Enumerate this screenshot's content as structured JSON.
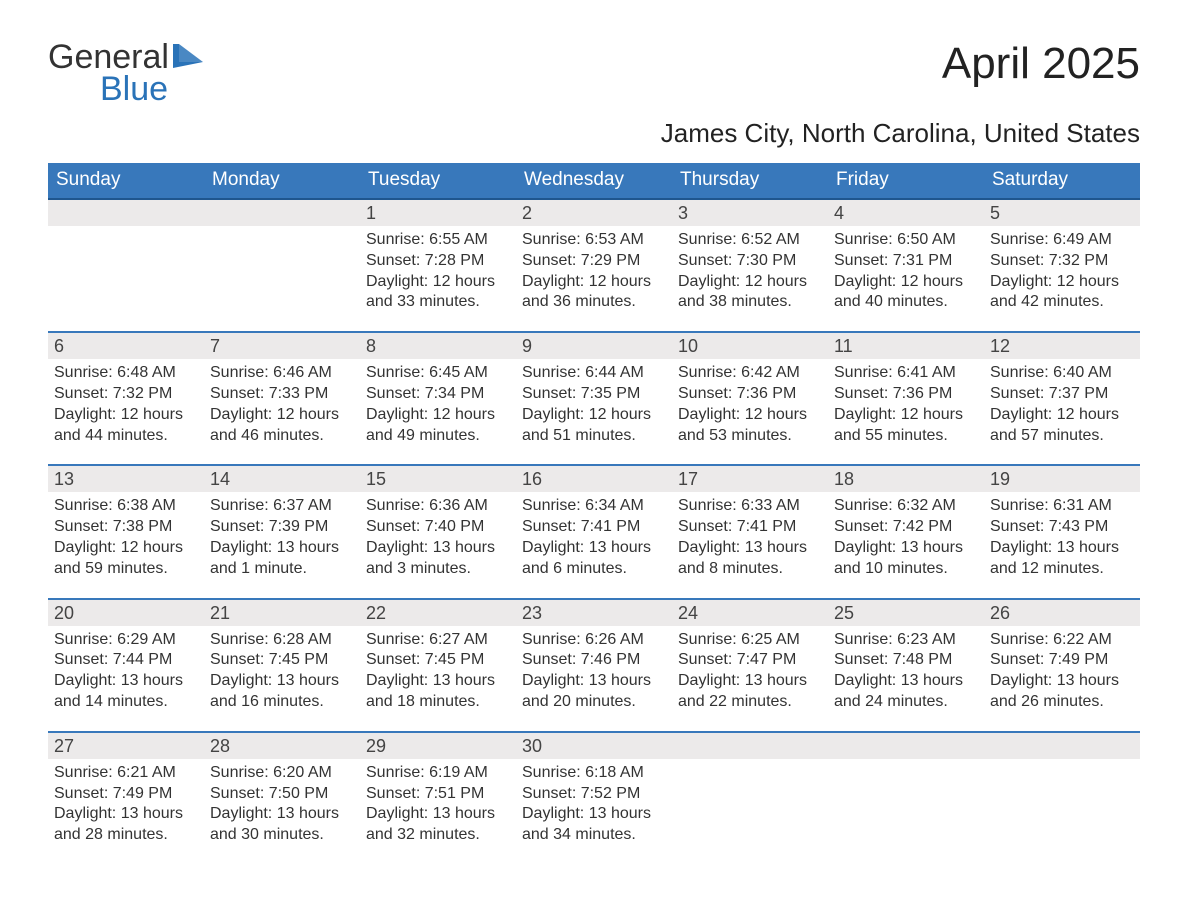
{
  "logo": {
    "line1": "General",
    "line2": "Blue"
  },
  "title": "April 2025",
  "subtitle": "James City, North Carolina, United States",
  "columns": [
    "Sunday",
    "Monday",
    "Tuesday",
    "Wednesday",
    "Thursday",
    "Friday",
    "Saturday"
  ],
  "style": {
    "header_bg": "#3878bb",
    "header_text": "#ffffff",
    "row_border": "#3878bb",
    "daynum_bg": "#eceaea",
    "body_text": "#333333",
    "logo_accent": "#2a73b8",
    "page_bg": "#ffffff",
    "title_fontsize": 44,
    "subtitle_fontsize": 26,
    "header_fontsize": 19,
    "daynum_fontsize": 18,
    "cell_fontsize": 16
  },
  "weeks": [
    [
      {
        "day": "",
        "sunrise": "",
        "sunset": "",
        "daylight1": "",
        "daylight2": ""
      },
      {
        "day": "",
        "sunrise": "",
        "sunset": "",
        "daylight1": "",
        "daylight2": ""
      },
      {
        "day": "1",
        "sunrise": "Sunrise: 6:55 AM",
        "sunset": "Sunset: 7:28 PM",
        "daylight1": "Daylight: 12 hours",
        "daylight2": "and 33 minutes."
      },
      {
        "day": "2",
        "sunrise": "Sunrise: 6:53 AM",
        "sunset": "Sunset: 7:29 PM",
        "daylight1": "Daylight: 12 hours",
        "daylight2": "and 36 minutes."
      },
      {
        "day": "3",
        "sunrise": "Sunrise: 6:52 AM",
        "sunset": "Sunset: 7:30 PM",
        "daylight1": "Daylight: 12 hours",
        "daylight2": "and 38 minutes."
      },
      {
        "day": "4",
        "sunrise": "Sunrise: 6:50 AM",
        "sunset": "Sunset: 7:31 PM",
        "daylight1": "Daylight: 12 hours",
        "daylight2": "and 40 minutes."
      },
      {
        "day": "5",
        "sunrise": "Sunrise: 6:49 AM",
        "sunset": "Sunset: 7:32 PM",
        "daylight1": "Daylight: 12 hours",
        "daylight2": "and 42 minutes."
      }
    ],
    [
      {
        "day": "6",
        "sunrise": "Sunrise: 6:48 AM",
        "sunset": "Sunset: 7:32 PM",
        "daylight1": "Daylight: 12 hours",
        "daylight2": "and 44 minutes."
      },
      {
        "day": "7",
        "sunrise": "Sunrise: 6:46 AM",
        "sunset": "Sunset: 7:33 PM",
        "daylight1": "Daylight: 12 hours",
        "daylight2": "and 46 minutes."
      },
      {
        "day": "8",
        "sunrise": "Sunrise: 6:45 AM",
        "sunset": "Sunset: 7:34 PM",
        "daylight1": "Daylight: 12 hours",
        "daylight2": "and 49 minutes."
      },
      {
        "day": "9",
        "sunrise": "Sunrise: 6:44 AM",
        "sunset": "Sunset: 7:35 PM",
        "daylight1": "Daylight: 12 hours",
        "daylight2": "and 51 minutes."
      },
      {
        "day": "10",
        "sunrise": "Sunrise: 6:42 AM",
        "sunset": "Sunset: 7:36 PM",
        "daylight1": "Daylight: 12 hours",
        "daylight2": "and 53 minutes."
      },
      {
        "day": "11",
        "sunrise": "Sunrise: 6:41 AM",
        "sunset": "Sunset: 7:36 PM",
        "daylight1": "Daylight: 12 hours",
        "daylight2": "and 55 minutes."
      },
      {
        "day": "12",
        "sunrise": "Sunrise: 6:40 AM",
        "sunset": "Sunset: 7:37 PM",
        "daylight1": "Daylight: 12 hours",
        "daylight2": "and 57 minutes."
      }
    ],
    [
      {
        "day": "13",
        "sunrise": "Sunrise: 6:38 AM",
        "sunset": "Sunset: 7:38 PM",
        "daylight1": "Daylight: 12 hours",
        "daylight2": "and 59 minutes."
      },
      {
        "day": "14",
        "sunrise": "Sunrise: 6:37 AM",
        "sunset": "Sunset: 7:39 PM",
        "daylight1": "Daylight: 13 hours",
        "daylight2": "and 1 minute."
      },
      {
        "day": "15",
        "sunrise": "Sunrise: 6:36 AM",
        "sunset": "Sunset: 7:40 PM",
        "daylight1": "Daylight: 13 hours",
        "daylight2": "and 3 minutes."
      },
      {
        "day": "16",
        "sunrise": "Sunrise: 6:34 AM",
        "sunset": "Sunset: 7:41 PM",
        "daylight1": "Daylight: 13 hours",
        "daylight2": "and 6 minutes."
      },
      {
        "day": "17",
        "sunrise": "Sunrise: 6:33 AM",
        "sunset": "Sunset: 7:41 PM",
        "daylight1": "Daylight: 13 hours",
        "daylight2": "and 8 minutes."
      },
      {
        "day": "18",
        "sunrise": "Sunrise: 6:32 AM",
        "sunset": "Sunset: 7:42 PM",
        "daylight1": "Daylight: 13 hours",
        "daylight2": "and 10 minutes."
      },
      {
        "day": "19",
        "sunrise": "Sunrise: 6:31 AM",
        "sunset": "Sunset: 7:43 PM",
        "daylight1": "Daylight: 13 hours",
        "daylight2": "and 12 minutes."
      }
    ],
    [
      {
        "day": "20",
        "sunrise": "Sunrise: 6:29 AM",
        "sunset": "Sunset: 7:44 PM",
        "daylight1": "Daylight: 13 hours",
        "daylight2": "and 14 minutes."
      },
      {
        "day": "21",
        "sunrise": "Sunrise: 6:28 AM",
        "sunset": "Sunset: 7:45 PM",
        "daylight1": "Daylight: 13 hours",
        "daylight2": "and 16 minutes."
      },
      {
        "day": "22",
        "sunrise": "Sunrise: 6:27 AM",
        "sunset": "Sunset: 7:45 PM",
        "daylight1": "Daylight: 13 hours",
        "daylight2": "and 18 minutes."
      },
      {
        "day": "23",
        "sunrise": "Sunrise: 6:26 AM",
        "sunset": "Sunset: 7:46 PM",
        "daylight1": "Daylight: 13 hours",
        "daylight2": "and 20 minutes."
      },
      {
        "day": "24",
        "sunrise": "Sunrise: 6:25 AM",
        "sunset": "Sunset: 7:47 PM",
        "daylight1": "Daylight: 13 hours",
        "daylight2": "and 22 minutes."
      },
      {
        "day": "25",
        "sunrise": "Sunrise: 6:23 AM",
        "sunset": "Sunset: 7:48 PM",
        "daylight1": "Daylight: 13 hours",
        "daylight2": "and 24 minutes."
      },
      {
        "day": "26",
        "sunrise": "Sunrise: 6:22 AM",
        "sunset": "Sunset: 7:49 PM",
        "daylight1": "Daylight: 13 hours",
        "daylight2": "and 26 minutes."
      }
    ],
    [
      {
        "day": "27",
        "sunrise": "Sunrise: 6:21 AM",
        "sunset": "Sunset: 7:49 PM",
        "daylight1": "Daylight: 13 hours",
        "daylight2": "and 28 minutes."
      },
      {
        "day": "28",
        "sunrise": "Sunrise: 6:20 AM",
        "sunset": "Sunset: 7:50 PM",
        "daylight1": "Daylight: 13 hours",
        "daylight2": "and 30 minutes."
      },
      {
        "day": "29",
        "sunrise": "Sunrise: 6:19 AM",
        "sunset": "Sunset: 7:51 PM",
        "daylight1": "Daylight: 13 hours",
        "daylight2": "and 32 minutes."
      },
      {
        "day": "30",
        "sunrise": "Sunrise: 6:18 AM",
        "sunset": "Sunset: 7:52 PM",
        "daylight1": "Daylight: 13 hours",
        "daylight2": "and 34 minutes."
      },
      {
        "day": "",
        "sunrise": "",
        "sunset": "",
        "daylight1": "",
        "daylight2": ""
      },
      {
        "day": "",
        "sunrise": "",
        "sunset": "",
        "daylight1": "",
        "daylight2": ""
      },
      {
        "day": "",
        "sunrise": "",
        "sunset": "",
        "daylight1": "",
        "daylight2": ""
      }
    ]
  ]
}
